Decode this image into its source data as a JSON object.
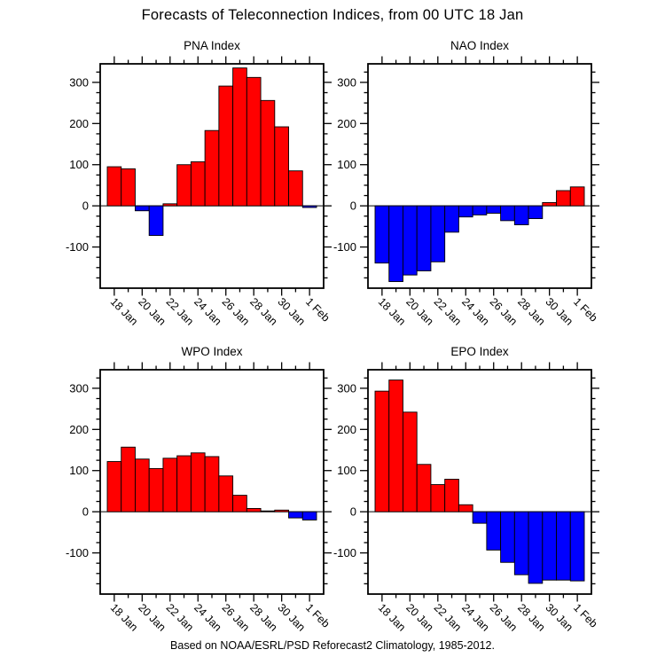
{
  "page": {
    "title": "Forecasts of Teleconnection Indices, from 00 UTC 18 Jan",
    "caption": "Based on NOAA/ESRL/PSD Reforecast2 Climatology, 1985-2012."
  },
  "colors": {
    "positive_bar": "#ff0000",
    "negative_bar": "#0000ff",
    "bar_outline": "#000000",
    "axis": "#000000",
    "background": "#ffffff"
  },
  "chart_data": [
    {
      "type": "bar",
      "title": "PNA Index",
      "categories": [
        "18 Jan",
        "19 Jan",
        "20 Jan",
        "21 Jan",
        "22 Jan",
        "23 Jan",
        "24 Jan",
        "25 Jan",
        "26 Jan",
        "27 Jan",
        "28 Jan",
        "29 Jan",
        "30 Jan",
        "31 Jan",
        "1 Feb"
      ],
      "values": [
        95,
        90,
        -12,
        -72,
        5,
        100,
        107,
        183,
        291,
        335,
        312,
        256,
        192,
        85,
        -4
      ],
      "xlabel": "",
      "ylabel": "",
      "ylim": [
        -200,
        345
      ],
      "yticks": [
        -100,
        0,
        100,
        200,
        300
      ],
      "ytick_labels": [
        "-100",
        "0",
        "100",
        "200",
        "300"
      ],
      "y_minor_step": 25,
      "x_major_labels": [
        "18 Jan",
        "20 Jan",
        "22 Jan",
        "24 Jan",
        "26 Jan",
        "28 Jan",
        "30 Jan",
        "1 Feb"
      ],
      "grid": false,
      "legend": false
    },
    {
      "type": "bar",
      "title": "NAO Index",
      "categories": [
        "18 Jan",
        "19 Jan",
        "20 Jan",
        "21 Jan",
        "22 Jan",
        "23 Jan",
        "24 Jan",
        "25 Jan",
        "26 Jan",
        "27 Jan",
        "28 Jan",
        "29 Jan",
        "30 Jan",
        "31 Jan",
        "1 Feb"
      ],
      "values": [
        -139,
        -184,
        -168,
        -158,
        -136,
        -64,
        -27,
        -22,
        -18,
        -36,
        -46,
        -31,
        8,
        37,
        46
      ],
      "xlabel": "",
      "ylabel": "",
      "ylim": [
        -200,
        345
      ],
      "yticks": [
        -100,
        0,
        100,
        200,
        300
      ],
      "ytick_labels": [
        "-100",
        "0",
        "100",
        "200",
        "300"
      ],
      "y_minor_step": 25,
      "x_major_labels": [
        "18 Jan",
        "20 Jan",
        "22 Jan",
        "24 Jan",
        "26 Jan",
        "28 Jan",
        "30 Jan",
        "1 Feb"
      ],
      "grid": false,
      "legend": false
    },
    {
      "type": "bar",
      "title": "WPO Index",
      "categories": [
        "18 Jan",
        "19 Jan",
        "20 Jan",
        "21 Jan",
        "22 Jan",
        "23 Jan",
        "24 Jan",
        "25 Jan",
        "26 Jan",
        "27 Jan",
        "28 Jan",
        "29 Jan",
        "30 Jan",
        "31 Jan",
        "1 Feb"
      ],
      "values": [
        122,
        157,
        128,
        105,
        130,
        136,
        143,
        134,
        87,
        40,
        8,
        2,
        4,
        -15,
        -20
      ],
      "xlabel": "",
      "ylabel": "",
      "ylim": [
        -200,
        345
      ],
      "yticks": [
        -100,
        0,
        100,
        200,
        300
      ],
      "ytick_labels": [
        "-100",
        "0",
        "100",
        "200",
        "300"
      ],
      "y_minor_step": 25,
      "x_major_labels": [
        "18 Jan",
        "20 Jan",
        "22 Jan",
        "24 Jan",
        "26 Jan",
        "28 Jan",
        "30 Jan",
        "1 Feb"
      ],
      "grid": false,
      "legend": false
    },
    {
      "type": "bar",
      "title": "EPO Index",
      "categories": [
        "18 Jan",
        "19 Jan",
        "20 Jan",
        "21 Jan",
        "22 Jan",
        "23 Jan",
        "24 Jan",
        "25 Jan",
        "26 Jan",
        "27 Jan",
        "28 Jan",
        "29 Jan",
        "30 Jan",
        "31 Jan",
        "1 Feb"
      ],
      "values": [
        293,
        320,
        242,
        115,
        66,
        79,
        17,
        -28,
        -93,
        -123,
        -153,
        -174,
        -166,
        -166,
        -168
      ],
      "xlabel": "",
      "ylabel": "",
      "ylim": [
        -200,
        345
      ],
      "yticks": [
        -100,
        0,
        100,
        200,
        300
      ],
      "ytick_labels": [
        "-100",
        "0",
        "100",
        "200",
        "300"
      ],
      "y_minor_step": 25,
      "x_major_labels": [
        "18 Jan",
        "20 Jan",
        "22 Jan",
        "24 Jan",
        "26 Jan",
        "28 Jan",
        "30 Jan",
        "1 Feb"
      ],
      "grid": false,
      "legend": false
    }
  ]
}
